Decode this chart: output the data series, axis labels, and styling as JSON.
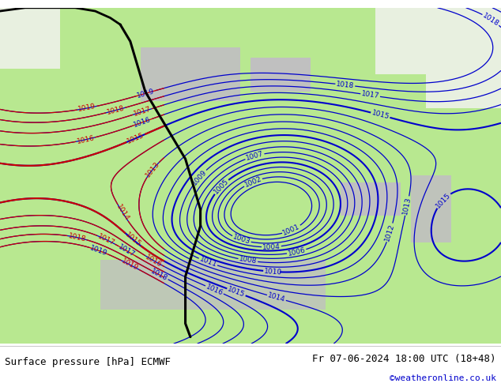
{
  "title_left": "Surface pressure [hPa] ECMWF",
  "title_right": "Fr 07-06-2024 18:00 UTC (18+48)",
  "credit": "©weatheronline.co.uk",
  "sea_color": "#c8c8c8",
  "land_color": "#b8e890",
  "land_color2": "#a0d870",
  "white_color": "#e8e8e8",
  "blue_line_color": "#0000cc",
  "red_line_color": "#cc0000",
  "black_line_color": "#000000",
  "bottom_bar_color": "#ffffff",
  "figsize": [
    6.34,
    4.9
  ],
  "dpi": 100
}
